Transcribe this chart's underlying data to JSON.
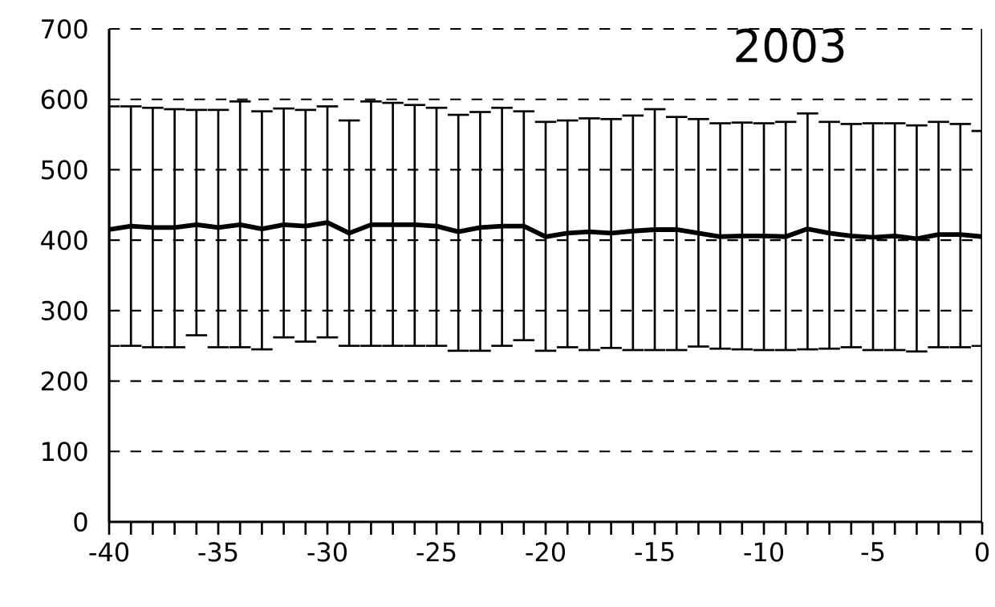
{
  "chart_data": {
    "type": "line",
    "title": "2003",
    "x": [
      -40,
      -39,
      -38,
      -37,
      -36,
      -35,
      -34,
      -33,
      -32,
      -31,
      -30,
      -29,
      -28,
      -27,
      -26,
      -25,
      -24,
      -23,
      -22,
      -21,
      -20,
      -19,
      -18,
      -17,
      -16,
      -15,
      -14,
      -13,
      -12,
      -11,
      -10,
      -9,
      -8,
      -7,
      -6,
      -5,
      -4,
      -3,
      -2,
      -1,
      0
    ],
    "series": [
      {
        "color": "#000000",
        "values": [
          415,
          420,
          418,
          418,
          422,
          418,
          422,
          416,
          422,
          420,
          425,
          410,
          422,
          422,
          422,
          420,
          412,
          418,
          420,
          420,
          405,
          410,
          412,
          410,
          413,
          415,
          415,
          410,
          405,
          406,
          406,
          405,
          416,
          410,
          406,
          404,
          406,
          402,
          408,
          408,
          405
        ],
        "errors": [
          [
            250,
            590
          ],
          [
            250,
            590
          ],
          [
            248,
            588
          ],
          [
            248,
            586
          ],
          [
            265,
            585
          ],
          [
            248,
            585
          ],
          [
            248,
            597
          ],
          [
            245,
            583
          ],
          [
            262,
            587
          ],
          [
            256,
            585
          ],
          [
            262,
            590
          ],
          [
            250,
            570
          ],
          [
            250,
            597
          ],
          [
            250,
            595
          ],
          [
            250,
            592
          ],
          [
            250,
            588
          ],
          [
            243,
            578
          ],
          [
            243,
            582
          ],
          [
            250,
            588
          ],
          [
            258,
            583
          ],
          [
            243,
            568
          ],
          [
            248,
            570
          ],
          [
            244,
            573
          ],
          [
            247,
            572
          ],
          [
            244,
            577
          ],
          [
            244,
            586
          ],
          [
            244,
            575
          ],
          [
            249,
            572
          ],
          [
            246,
            566
          ],
          [
            245,
            567
          ],
          [
            244,
            566
          ],
          [
            244,
            568
          ],
          [
            245,
            580
          ],
          [
            246,
            568
          ],
          [
            248,
            565
          ],
          [
            244,
            566
          ],
          [
            244,
            566
          ],
          [
            242,
            563
          ],
          [
            248,
            568
          ],
          [
            248,
            565
          ],
          [
            250,
            555
          ]
        ]
      }
    ],
    "xlim": [
      -40,
      0
    ],
    "ylim": [
      0,
      700
    ],
    "xticks": [
      -40,
      -35,
      -30,
      -25,
      -20,
      -15,
      -10,
      -5,
      0
    ],
    "yticks": [
      0,
      100,
      200,
      300,
      400,
      500,
      600,
      700
    ],
    "grid": "y",
    "line_style": "solid",
    "marker": "none"
  }
}
